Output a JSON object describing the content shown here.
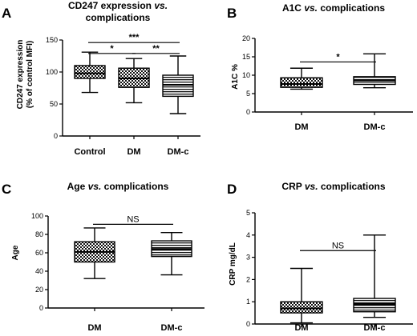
{
  "chart_data": [
    {
      "type": "box",
      "panel": "A",
      "title": "CD247 expression vs. complications",
      "title_parts": [
        "CD247 expression ",
        "vs.",
        " complications"
      ],
      "ylabel_lines": [
        "CD247 expression",
        "(% of control MFI)"
      ],
      "ylim": [
        0,
        150
      ],
      "yticks": [
        0,
        50,
        100,
        150
      ],
      "categories": [
        "Control",
        "DM",
        "DM-c"
      ],
      "boxes": [
        {
          "category": "Control",
          "min": 68,
          "q1": 90,
          "median": 98,
          "q3": 110,
          "max": 131,
          "pattern": "dots"
        },
        {
          "category": "DM",
          "min": 52,
          "q1": 76,
          "median": 90,
          "q3": 106,
          "max": 121,
          "pattern": "dots"
        },
        {
          "category": "DM-c",
          "min": 35,
          "q1": 62,
          "median": 80,
          "q3": 95,
          "max": 125,
          "pattern": "lines"
        }
      ],
      "annotations": [
        {
          "label": "***",
          "from": "Control",
          "to": "DM-c",
          "y": 146
        },
        {
          "label": "*",
          "from": "Control",
          "to": "DM",
          "y": 129
        },
        {
          "label": "**",
          "from": "DM",
          "to": "DM-c",
          "y": 129
        }
      ]
    },
    {
      "type": "box",
      "panel": "B",
      "title": "A1C vs. complications",
      "title_parts": [
        "A1C ",
        "vs.",
        " complications"
      ],
      "ylabel_lines": [
        "A1C %"
      ],
      "ylim": [
        0,
        20
      ],
      "yticks": [
        0,
        5,
        10,
        15,
        20
      ],
      "categories": [
        "DM",
        "DM-c"
      ],
      "boxes": [
        {
          "category": "DM",
          "min": 6.2,
          "q1": 6.7,
          "median": 7.6,
          "q3": 9.3,
          "max": 11.9,
          "pattern": "dots"
        },
        {
          "category": "DM-c",
          "min": 6.6,
          "q1": 7.5,
          "median": 8.6,
          "q3": 9.6,
          "max": 15.8,
          "pattern": "lines"
        }
      ],
      "annotations": [
        {
          "label": "*",
          "from": "DM",
          "to": "DM-c",
          "y": 13.6
        }
      ]
    },
    {
      "type": "box",
      "panel": "C",
      "title": "Age vs. complications",
      "title_parts": [
        "Age ",
        "vs.",
        " complications"
      ],
      "ylabel_lines": [
        "Age"
      ],
      "ylim": [
        0,
        100
      ],
      "yticks": [
        0,
        20,
        40,
        60,
        80,
        100
      ],
      "categories": [
        "DM",
        "DM-c"
      ],
      "boxes": [
        {
          "category": "DM",
          "min": 32,
          "q1": 50,
          "median": 61,
          "q3": 72,
          "max": 87,
          "pattern": "dots"
        },
        {
          "category": "DM-c",
          "min": 36,
          "q1": 56,
          "median": 64,
          "q3": 73,
          "max": 82,
          "pattern": "lines"
        }
      ],
      "annotations": [
        {
          "label": "NS",
          "from": "DM",
          "to": "DM-c",
          "y": 91
        }
      ]
    },
    {
      "type": "box",
      "panel": "D",
      "title": "CRP vs. complications",
      "title_parts": [
        "CRP ",
        "vs.",
        " complications"
      ],
      "ylabel_lines": [
        "CRP mg/dL"
      ],
      "ylim": [
        0,
        5
      ],
      "yticks": [
        0,
        1,
        2,
        3,
        4,
        5
      ],
      "categories": [
        "DM",
        "DM-c"
      ],
      "boxes": [
        {
          "category": "DM",
          "min": 0.05,
          "q1": 0.5,
          "median": 0.7,
          "q3": 1.0,
          "max": 2.5,
          "pattern": "dots"
        },
        {
          "category": "DM-c",
          "min": 0.3,
          "q1": 0.55,
          "median": 0.9,
          "q3": 1.15,
          "max": 4.0,
          "pattern": "lines"
        }
      ],
      "annotations": [
        {
          "label": "NS",
          "from": "DM",
          "to": "DM-c",
          "y": 3.3
        }
      ]
    }
  ]
}
